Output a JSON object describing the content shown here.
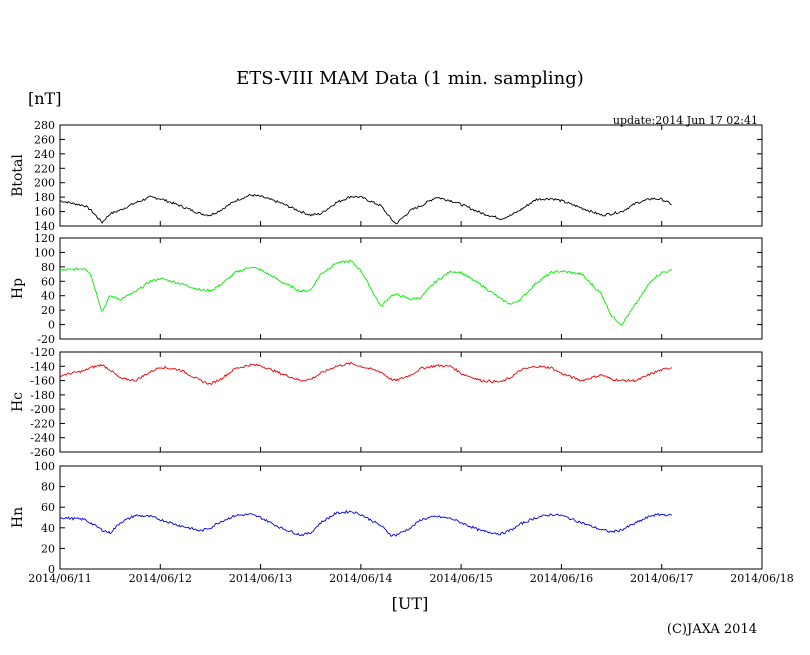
{
  "header": {
    "title": "ETS-VIII MAM Data (1 min. sampling)",
    "unit": "[nT]",
    "update": "update:2014 Jun 17 02:41"
  },
  "footer": {
    "copyright": "(C)JAXA 2014"
  },
  "chart_data": {
    "type": "line",
    "xlabel": "[UT]",
    "x_ticks": [
      "2014/06/11",
      "2014/06/12",
      "2014/06/13",
      "2014/06/14",
      "2014/06/15",
      "2014/06/16",
      "2014/06/17",
      "2014/06/18"
    ],
    "xlim": [
      0,
      7
    ],
    "x": [
      0,
      0.25,
      0.3,
      0.42,
      0.5,
      0.6,
      0.75,
      0.9,
      1.0,
      1.2,
      1.4,
      1.5,
      1.6,
      1.75,
      1.9,
      2.0,
      2.2,
      2.4,
      2.5,
      2.6,
      2.75,
      2.9,
      3.0,
      3.2,
      3.3,
      3.35,
      3.5,
      3.6,
      3.75,
      3.9,
      4.0,
      4.2,
      4.4,
      4.5,
      4.6,
      4.75,
      4.9,
      5.0,
      5.2,
      5.4,
      5.5,
      5.6,
      5.75,
      5.9,
      6.0,
      6.1
    ],
    "panels": [
      {
        "ylabel": "Btotal",
        "ylim": [
          140,
          280
        ],
        "yticks": [
          140,
          160,
          180,
          200,
          220,
          240,
          260,
          280
        ],
        "color": "#000000",
        "values": [
          175,
          168,
          163,
          145,
          157,
          162,
          172,
          180,
          178,
          168,
          157,
          155,
          162,
          175,
          183,
          181,
          172,
          160,
          155,
          157,
          172,
          181,
          180,
          168,
          150,
          143,
          162,
          168,
          180,
          175,
          170,
          158,
          150,
          155,
          163,
          177,
          178,
          175,
          165,
          155,
          157,
          160,
          172,
          178,
          177,
          170
        ]
      },
      {
        "ylabel": "Hp",
        "ylim": [
          -20,
          120
        ],
        "yticks": [
          -20,
          0,
          20,
          40,
          60,
          80,
          100,
          120
        ],
        "color": "#00ee00",
        "values": [
          75,
          78,
          72,
          18,
          40,
          35,
          45,
          60,
          64,
          57,
          48,
          47,
          55,
          72,
          80,
          76,
          60,
          46,
          48,
          70,
          85,
          88,
          75,
          25,
          40,
          42,
          35,
          38,
          60,
          74,
          72,
          55,
          35,
          28,
          36,
          58,
          72,
          74,
          70,
          42,
          12,
          0,
          30,
          62,
          72,
          75
        ]
      },
      {
        "ylabel": "Hc",
        "ylim": [
          -260,
          -120
        ],
        "yticks": [
          -120,
          -140,
          -160,
          -180,
          -200,
          -220,
          -240,
          -260
        ],
        "color": "#ee0000",
        "values": [
          -153,
          -146,
          -142,
          -138,
          -145,
          -157,
          -160,
          -148,
          -141,
          -145,
          -160,
          -165,
          -158,
          -143,
          -138,
          -139,
          -150,
          -160,
          -158,
          -150,
          -140,
          -136,
          -140,
          -148,
          -158,
          -160,
          -152,
          -143,
          -139,
          -140,
          -150,
          -160,
          -162,
          -155,
          -145,
          -140,
          -142,
          -150,
          -160,
          -152,
          -158,
          -160,
          -160,
          -150,
          -145,
          -142
        ]
      },
      {
        "ylabel": "Hn",
        "ylim": [
          0,
          100
        ],
        "yticks": [
          0,
          20,
          40,
          60,
          80,
          100
        ],
        "color": "#0000ee",
        "values": [
          50,
          48,
          45,
          38,
          35,
          45,
          52,
          51,
          48,
          42,
          37,
          40,
          46,
          52,
          53,
          50,
          40,
          33,
          35,
          45,
          54,
          56,
          53,
          42,
          33,
          33,
          40,
          48,
          51,
          49,
          45,
          37,
          34,
          38,
          44,
          50,
          53,
          52,
          45,
          38,
          36,
          38,
          45,
          52,
          53,
          52
        ]
      }
    ]
  }
}
